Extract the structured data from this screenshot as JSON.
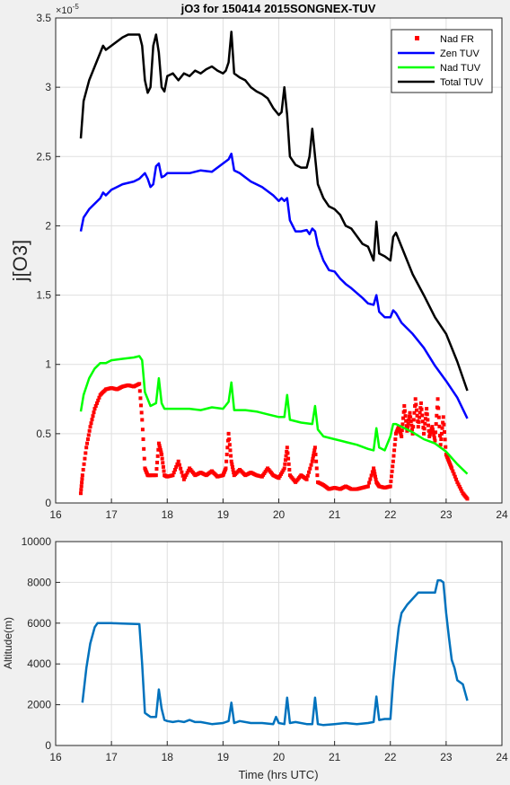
{
  "chart_data": [
    {
      "type": "line",
      "title": "jO3 for 150414 2015SONGNEX-TUV",
      "ylabel": "j[O3]",
      "xlabel": "",
      "exponent_label": "×10",
      "exponent_power": "-5",
      "xlim": [
        16,
        24
      ],
      "ylim": [
        0,
        3.5
      ],
      "xticks": [
        "16",
        "17",
        "18",
        "19",
        "20",
        "21",
        "22",
        "23",
        "24"
      ],
      "yticks": [
        "0",
        "0.5",
        "1",
        "1.5",
        "2",
        "2.5",
        "3",
        "3.5"
      ],
      "grid": true,
      "legend_position": "top-right",
      "series": [
        {
          "name": "Nad FR",
          "color": "#ff0000",
          "style": "markers",
          "x": [
            16.45,
            16.48,
            16.55,
            16.62,
            16.7,
            16.8,
            16.9,
            17.0,
            17.1,
            17.2,
            17.3,
            17.4,
            17.5,
            17.55,
            17.6,
            17.65,
            17.7,
            17.8,
            17.85,
            17.9,
            17.95,
            18.0,
            18.1,
            18.2,
            18.3,
            18.4,
            18.5,
            18.6,
            18.7,
            18.8,
            18.9,
            19.0,
            19.05,
            19.1,
            19.15,
            19.2,
            19.3,
            19.4,
            19.5,
            19.6,
            19.7,
            19.8,
            19.9,
            20.0,
            20.1,
            20.15,
            20.2,
            20.3,
            20.4,
            20.5,
            20.6,
            20.65,
            20.7,
            20.8,
            20.9,
            21.0,
            21.1,
            21.2,
            21.3,
            21.4,
            21.5,
            21.6,
            21.7,
            21.75,
            21.8,
            21.9,
            22.0,
            22.05,
            22.1,
            22.15,
            22.2,
            22.25,
            22.3,
            22.35,
            22.4,
            22.45,
            22.5,
            22.55,
            22.6,
            22.65,
            22.7,
            22.75,
            22.8,
            22.85,
            22.9,
            22.95,
            23.0,
            23.05,
            23.1,
            23.2,
            23.3,
            23.38
          ],
          "y": [
            0.07,
            0.2,
            0.4,
            0.55,
            0.68,
            0.78,
            0.82,
            0.83,
            0.82,
            0.84,
            0.85,
            0.84,
            0.86,
            0.6,
            0.25,
            0.2,
            0.2,
            0.2,
            0.43,
            0.35,
            0.2,
            0.19,
            0.2,
            0.3,
            0.17,
            0.25,
            0.2,
            0.22,
            0.2,
            0.23,
            0.19,
            0.2,
            0.25,
            0.5,
            0.3,
            0.2,
            0.24,
            0.2,
            0.22,
            0.2,
            0.19,
            0.25,
            0.2,
            0.18,
            0.25,
            0.4,
            0.2,
            0.15,
            0.2,
            0.17,
            0.3,
            0.4,
            0.15,
            0.13,
            0.1,
            0.11,
            0.1,
            0.12,
            0.1,
            0.1,
            0.11,
            0.12,
            0.25,
            0.15,
            0.12,
            0.11,
            0.12,
            0.3,
            0.5,
            0.55,
            0.48,
            0.7,
            0.52,
            0.65,
            0.5,
            0.75,
            0.55,
            0.72,
            0.5,
            0.68,
            0.48,
            0.55,
            0.45,
            0.75,
            0.42,
            0.62,
            0.35,
            0.3,
            0.25,
            0.15,
            0.07,
            0.03
          ]
        },
        {
          "name": "Zen TUV",
          "color": "#0000ff",
          "style": "line",
          "x": [
            16.45,
            16.5,
            16.6,
            16.7,
            16.8,
            16.85,
            16.9,
            17.0,
            17.2,
            17.4,
            17.5,
            17.6,
            17.65,
            17.7,
            17.75,
            17.8,
            17.85,
            17.9,
            17.95,
            18.0,
            18.2,
            18.4,
            18.6,
            18.8,
            19.0,
            19.1,
            19.15,
            19.2,
            19.3,
            19.5,
            19.7,
            19.9,
            20.0,
            20.05,
            20.1,
            20.15,
            20.2,
            20.3,
            20.4,
            20.5,
            20.55,
            20.6,
            20.65,
            20.7,
            20.8,
            20.9,
            21.0,
            21.1,
            21.2,
            21.3,
            21.5,
            21.6,
            21.7,
            21.75,
            21.8,
            21.9,
            22.0,
            22.05,
            22.1,
            22.2,
            22.4,
            22.6,
            22.8,
            23.0,
            23.2,
            23.38
          ],
          "y": [
            1.96,
            2.06,
            2.12,
            2.16,
            2.2,
            2.24,
            2.22,
            2.26,
            2.3,
            2.32,
            2.34,
            2.38,
            2.34,
            2.28,
            2.3,
            2.43,
            2.45,
            2.35,
            2.36,
            2.38,
            2.38,
            2.38,
            2.4,
            2.39,
            2.45,
            2.48,
            2.52,
            2.4,
            2.38,
            2.32,
            2.28,
            2.22,
            2.18,
            2.2,
            2.18,
            2.2,
            2.04,
            1.96,
            1.96,
            1.97,
            1.94,
            1.98,
            1.96,
            1.86,
            1.75,
            1.68,
            1.67,
            1.62,
            1.58,
            1.55,
            1.48,
            1.44,
            1.43,
            1.5,
            1.38,
            1.34,
            1.34,
            1.39,
            1.37,
            1.3,
            1.22,
            1.12,
            0.99,
            0.88,
            0.76,
            0.61
          ]
        },
        {
          "name": "Nad TUV",
          "color": "#00ff00",
          "style": "line",
          "x": [
            16.45,
            16.5,
            16.6,
            16.7,
            16.8,
            16.9,
            17.0,
            17.2,
            17.4,
            17.5,
            17.55,
            17.6,
            17.7,
            17.8,
            17.85,
            17.9,
            17.95,
            18.0,
            18.2,
            18.4,
            18.6,
            18.8,
            19.0,
            19.1,
            19.15,
            19.2,
            19.4,
            19.6,
            19.8,
            20.0,
            20.1,
            20.15,
            20.2,
            20.4,
            20.6,
            20.65,
            20.7,
            20.8,
            21.0,
            21.2,
            21.4,
            21.6,
            21.7,
            21.75,
            21.8,
            21.9,
            22.0,
            22.05,
            22.1,
            22.2,
            22.4,
            22.6,
            22.8,
            23.0,
            23.2,
            23.38
          ],
          "y": [
            0.66,
            0.78,
            0.9,
            0.97,
            1.01,
            1.01,
            1.03,
            1.04,
            1.05,
            1.06,
            1.03,
            0.8,
            0.7,
            0.72,
            0.9,
            0.72,
            0.68,
            0.68,
            0.68,
            0.68,
            0.67,
            0.69,
            0.68,
            0.73,
            0.87,
            0.67,
            0.67,
            0.66,
            0.64,
            0.62,
            0.62,
            0.78,
            0.6,
            0.58,
            0.57,
            0.7,
            0.53,
            0.48,
            0.46,
            0.44,
            0.42,
            0.39,
            0.38,
            0.54,
            0.4,
            0.38,
            0.48,
            0.57,
            0.57,
            0.55,
            0.51,
            0.46,
            0.43,
            0.37,
            0.28,
            0.21
          ]
        },
        {
          "name": "Total TUV",
          "color": "#000000",
          "style": "line",
          "x": [
            16.45,
            16.5,
            16.6,
            16.7,
            16.8,
            16.85,
            16.9,
            17.0,
            17.1,
            17.2,
            17.3,
            17.4,
            17.5,
            17.55,
            17.6,
            17.65,
            17.7,
            17.75,
            17.8,
            17.85,
            17.9,
            17.95,
            18.0,
            18.1,
            18.2,
            18.3,
            18.4,
            18.5,
            18.6,
            18.7,
            18.8,
            18.9,
            19.0,
            19.05,
            19.1,
            19.15,
            19.2,
            19.3,
            19.4,
            19.5,
            19.6,
            19.7,
            19.8,
            19.9,
            20.0,
            20.05,
            20.1,
            20.15,
            20.2,
            20.3,
            20.4,
            20.5,
            20.55,
            20.6,
            20.65,
            20.7,
            20.8,
            20.9,
            21.0,
            21.1,
            21.2,
            21.3,
            21.5,
            21.6,
            21.7,
            21.75,
            21.8,
            21.9,
            22.0,
            22.05,
            22.1,
            22.2,
            22.4,
            22.6,
            22.8,
            23.0,
            23.2,
            23.38
          ],
          "y": [
            2.63,
            2.9,
            3.05,
            3.15,
            3.25,
            3.3,
            3.27,
            3.3,
            3.33,
            3.36,
            3.38,
            3.38,
            3.38,
            3.3,
            3.05,
            2.96,
            3.0,
            3.3,
            3.38,
            3.25,
            3.0,
            2.97,
            3.08,
            3.1,
            3.05,
            3.1,
            3.08,
            3.12,
            3.1,
            3.13,
            3.15,
            3.12,
            3.1,
            3.12,
            3.18,
            3.4,
            3.1,
            3.07,
            3.05,
            3.0,
            2.97,
            2.95,
            2.92,
            2.85,
            2.8,
            2.82,
            3.0,
            2.8,
            2.5,
            2.44,
            2.42,
            2.42,
            2.5,
            2.7,
            2.5,
            2.3,
            2.2,
            2.14,
            2.12,
            2.08,
            2.0,
            1.98,
            1.87,
            1.85,
            1.75,
            2.03,
            1.8,
            1.78,
            1.75,
            1.92,
            1.95,
            1.85,
            1.65,
            1.5,
            1.34,
            1.22,
            1.02,
            0.81
          ]
        }
      ]
    },
    {
      "type": "line",
      "title": "",
      "xlabel": "Time (hrs UTC)",
      "ylabel": "Altitude(m)",
      "xlim": [
        16,
        24
      ],
      "ylim": [
        0,
        10000
      ],
      "xticks": [
        "16",
        "17",
        "18",
        "19",
        "20",
        "21",
        "22",
        "23",
        "24"
      ],
      "yticks": [
        "0",
        "2000",
        "4000",
        "6000",
        "8000",
        "10000"
      ],
      "grid": true,
      "series": [
        {
          "name": "",
          "color": "#0072bd",
          "style": "line",
          "x": [
            16.48,
            16.55,
            16.62,
            16.7,
            16.75,
            16.8,
            17.0,
            17.2,
            17.5,
            17.55,
            17.6,
            17.65,
            17.7,
            17.8,
            17.85,
            17.9,
            17.95,
            18.0,
            18.1,
            18.2,
            18.3,
            18.4,
            18.5,
            18.6,
            18.8,
            19.0,
            19.1,
            19.15,
            19.2,
            19.3,
            19.5,
            19.7,
            19.9,
            19.95,
            20.0,
            20.1,
            20.15,
            20.2,
            20.3,
            20.5,
            20.6,
            20.65,
            20.7,
            20.8,
            21.0,
            21.2,
            21.4,
            21.6,
            21.7,
            21.75,
            21.8,
            21.9,
            22.0,
            22.05,
            22.1,
            22.15,
            22.2,
            22.3,
            22.5,
            22.8,
            22.85,
            22.9,
            22.95,
            23.0,
            23.05,
            23.1,
            23.15,
            23.2,
            23.3,
            23.38
          ],
          "y": [
            2100,
            3800,
            5000,
            5800,
            6000,
            6000,
            6000,
            5980,
            5950,
            4000,
            1600,
            1500,
            1400,
            1400,
            2750,
            1800,
            1250,
            1200,
            1150,
            1200,
            1150,
            1250,
            1150,
            1150,
            1050,
            1100,
            1200,
            2100,
            1100,
            1200,
            1100,
            1100,
            1050,
            1400,
            1100,
            1050,
            2350,
            1100,
            1150,
            1050,
            1050,
            2350,
            1050,
            1000,
            1050,
            1100,
            1050,
            1100,
            1150,
            2400,
            1250,
            1300,
            1300,
            3200,
            4600,
            5800,
            6500,
            6900,
            7500,
            7500,
            8100,
            8100,
            8000,
            6500,
            5300,
            4200,
            3800,
            3200,
            3000,
            2200
          ]
        }
      ]
    }
  ]
}
